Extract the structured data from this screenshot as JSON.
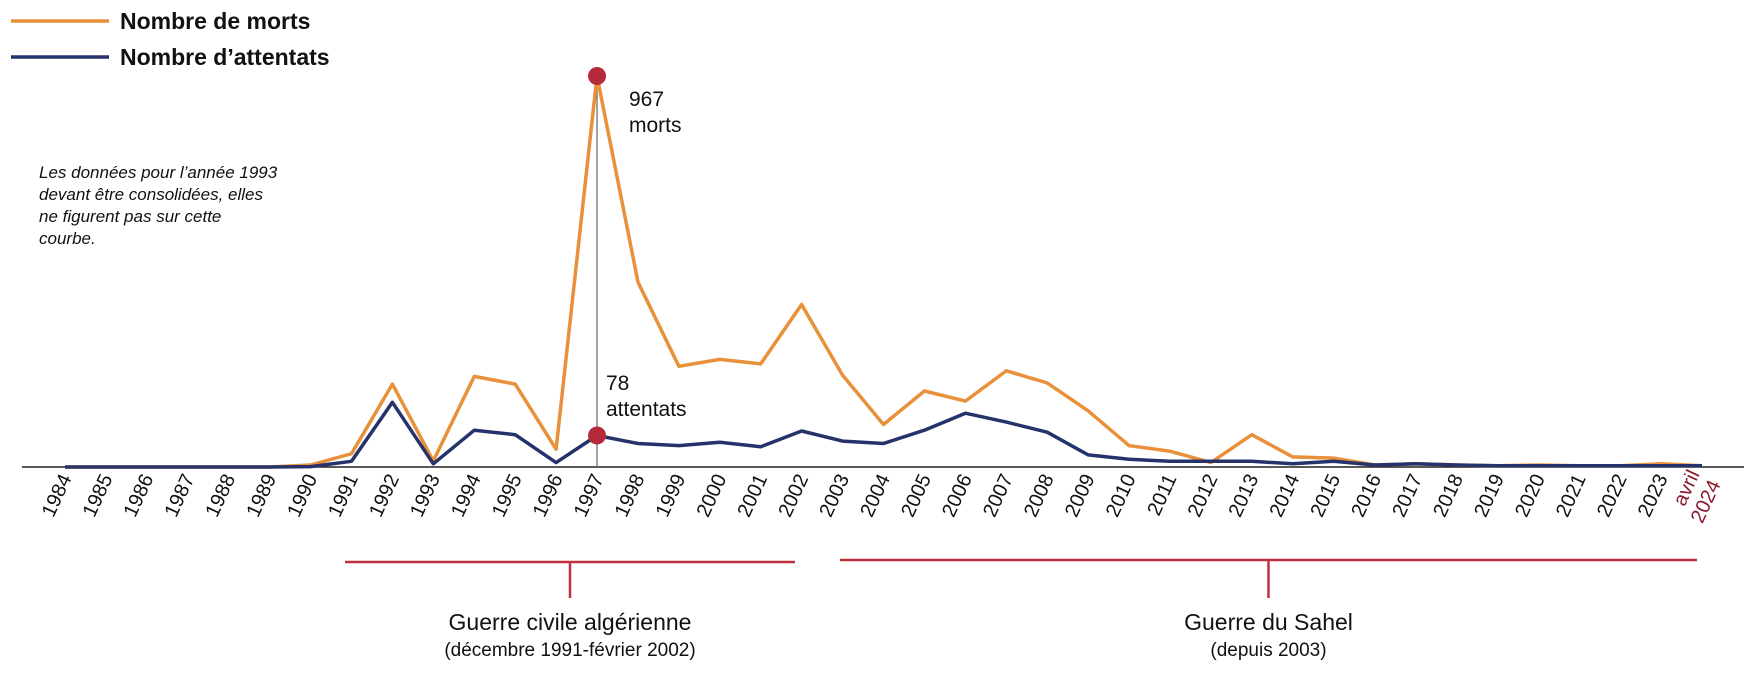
{
  "chart_data": {
    "type": "line",
    "title": "",
    "xlabel": "",
    "ylabel": "",
    "ylim": [
      0,
      1000
    ],
    "grid": false,
    "legend_placement": "top-left",
    "categories": [
      "1984",
      "1985",
      "1986",
      "1987",
      "1988",
      "1989",
      "1990",
      "1991",
      "1992",
      "1993",
      "1994",
      "1995",
      "1996",
      "1997",
      "1998",
      "1999",
      "2000",
      "2001",
      "2002",
      "2003",
      "2004",
      "2005",
      "2006",
      "2007",
      "2008",
      "2009",
      "2010",
      "2011",
      "2012",
      "2013",
      "2014",
      "2015",
      "2016",
      "2017",
      "2018",
      "2019",
      "2020",
      "2021",
      "2022",
      "2023",
      "avril 2024"
    ],
    "last_category_lines": [
      "avril",
      "2024"
    ],
    "series": [
      {
        "name": "Nombre de morts",
        "color": "#e8913a",
        "values": [
          0,
          0,
          0,
          0,
          0,
          0,
          5,
          33,
          205,
          15,
          224,
          205,
          44,
          967,
          457,
          249,
          266,
          255,
          402,
          227,
          105,
          188,
          163,
          238,
          208,
          139,
          53,
          39,
          11,
          80,
          25,
          22,
          5,
          8,
          5,
          3,
          5,
          3,
          3,
          8,
          3
        ]
      },
      {
        "name": "Nombre d’attentats",
        "color": "#26336b",
        "values": [
          0,
          0,
          0,
          0,
          0,
          0,
          1,
          14,
          160,
          8,
          91,
          80,
          11,
          78,
          58,
          53,
          61,
          50,
          89,
          64,
          58,
          91,
          133,
          111,
          86,
          30,
          19,
          14,
          14,
          14,
          8,
          14,
          5,
          8,
          5,
          3,
          3,
          3,
          3,
          3,
          3
        ]
      }
    ],
    "annotations": {
      "peak_deaths": {
        "value": "967",
        "unit": "morts"
      },
      "peak_attacks": {
        "value": "78",
        "unit": "attentats"
      },
      "note": [
        "Les données pour l’année 1993",
        "devant être consolidées, elles",
        "ne figurent pas sur cette",
        "courbe."
      ]
    },
    "periods": [
      {
        "title": "Guerre civile algérienne",
        "subtitle": "(décembre 1991-février 2002)",
        "from": 1991.9,
        "to": 2002
      },
      {
        "title": "Guerre du Sahel",
        "subtitle": "(depuis 2003)",
        "from": 2003,
        "to": 2024
      }
    ],
    "colors": {
      "marker": "#b52a3a",
      "period": "#c0303f",
      "last_label": "#8b1a2e",
      "axis": "#222222"
    }
  }
}
